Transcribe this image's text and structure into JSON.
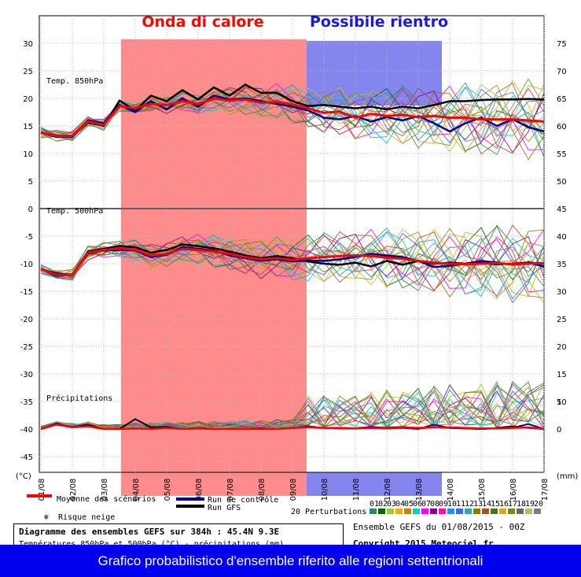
{
  "chart_data": {
    "type": "line",
    "title": "Diagramme des ensembles GEFS sur 384h : 45.4N 9.3E",
    "subtitle": "Températures 850hPa et 500hPa (°C) - précipitations (mm)",
    "x_ticks": [
      "01/08",
      "02/08",
      "03/08",
      "04/08",
      "05/08",
      "06/08",
      "07/08",
      "08/08",
      "09/08",
      "10/08",
      "11/08",
      "12/08",
      "13/08",
      "14/08",
      "15/08",
      "16/08",
      "17/08"
    ],
    "x_range": [
      0,
      16
    ],
    "y_left": {
      "ticks": [
        30,
        25,
        20,
        15,
        10,
        5,
        0,
        -5,
        -10,
        -15,
        -20,
        -25,
        -30,
        -35,
        -40,
        -45
      ],
      "unit": "(°C)",
      "range": [
        -45,
        30
      ]
    },
    "y_right": {
      "t850_ticks": [
        75,
        70,
        65,
        60,
        55,
        50,
        45
      ],
      "t500_ticks": [
        40,
        35,
        30,
        25,
        20,
        15,
        10
      ],
      "precip_ticks": [
        5,
        0
      ],
      "unit": "(mm)"
    },
    "panel_labels": {
      "t850": "Temp. 850hPa",
      "t500": "Temp. 500hPa",
      "precip": "Précipitations"
    },
    "annotations": [
      {
        "label": "Onda di calore",
        "color": "#ff0000",
        "x_range": [
          3,
          8.5
        ]
      },
      {
        "label": "Possibile rientro",
        "color": "#1a1adc",
        "x_range": [
          8.5,
          12.75
        ]
      }
    ],
    "series": [
      {
        "name": "Moyenne des scénarios",
        "color": "#ff0000",
        "x": [
          0,
          0.5,
          1,
          1.5,
          2,
          2.5,
          3,
          3.5,
          4,
          4.5,
          5,
          5.5,
          6,
          6.5,
          7,
          7.5,
          8,
          8.5,
          9,
          9.5,
          10,
          10.5,
          11,
          11.5,
          12,
          12.5,
          13,
          13.5,
          14,
          14.5,
          15,
          15.5,
          16
        ],
        "t850": [
          13.8,
          13.2,
          13.2,
          15.8,
          15.2,
          18.6,
          18.2,
          19.0,
          18.8,
          19.5,
          19.0,
          20.0,
          19.6,
          19.8,
          19.2,
          19.4,
          18.9,
          18.2,
          17.4,
          17.6,
          16.5,
          17.2,
          16.8,
          17.0,
          16.6,
          16.8,
          16.5,
          16.5,
          16.2,
          16.2,
          16.2,
          16.0,
          15.8
        ],
        "t500": [
          -11,
          -12,
          -12,
          -8,
          -7.5,
          -7.2,
          -7.5,
          -8.5,
          -8.2,
          -7.3,
          -7.5,
          -7.8,
          -8.2,
          -8.8,
          -9.2,
          -9.0,
          -9.3,
          -9.0,
          -8.8,
          -8.6,
          -8.5,
          -8.6,
          -8.9,
          -9.1,
          -9.5,
          -9.8,
          -10.0,
          -10.1,
          -10.0,
          -9.9,
          -10.1,
          -10.0,
          -9.9
        ],
        "precip": [
          0,
          0.8,
          0.3,
          0.5,
          0,
          0,
          0.1,
          0,
          0.2,
          0,
          0.1,
          0,
          0,
          0,
          0,
          0,
          0.2,
          0.3,
          0.2,
          0.2,
          0.1,
          0.2,
          0.1,
          0.3,
          0.2,
          0.3,
          0.3,
          0.2,
          0.1,
          0.1,
          0.2,
          0.3,
          0
        ]
      },
      {
        "name": "Run de contrôle",
        "color": "#00008b",
        "x": [
          0,
          0.5,
          1,
          1.5,
          2,
          2.5,
          3,
          3.5,
          4,
          4.5,
          5,
          5.5,
          6,
          6.5,
          7,
          7.5,
          8,
          8.5,
          9,
          9.5,
          10,
          10.5,
          11,
          11.5,
          12,
          12.5,
          13,
          13.5,
          14,
          14.5,
          15,
          15.5,
          16
        ],
        "t850": [
          13.8,
          13.0,
          13.0,
          16.0,
          15.5,
          18.8,
          17.5,
          19.5,
          18.0,
          20.0,
          18.5,
          20.5,
          19.8,
          20.0,
          19.5,
          19.0,
          18.5,
          17.8,
          16.5,
          16.2,
          16.8,
          15.8,
          16.6,
          16.0,
          16.8,
          15.5,
          14.0,
          15.5,
          16.5,
          15.0,
          16.2,
          14.8,
          14.0
        ],
        "t500": [
          -11,
          -12.2,
          -12,
          -8.2,
          -7.6,
          -7.5,
          -7.6,
          -8.8,
          -8.4,
          -7.0,
          -7.3,
          -7.6,
          -8.5,
          -9.0,
          -9.5,
          -9.2,
          -9.6,
          -9.4,
          -9.5,
          -9.2,
          -8.8,
          -8.2,
          -8.5,
          -8.8,
          -9.5,
          -10.6,
          -10.4,
          -10.0,
          -9.5,
          -9.8,
          -10.2,
          -9.8,
          -10.5
        ],
        "precip": [
          0,
          0.9,
          0.4,
          0.6,
          0,
          0,
          0.1,
          0,
          0.2,
          0,
          0.1,
          0,
          0,
          0,
          0,
          0,
          0.2,
          0.5,
          0.2,
          0.1,
          0.1,
          0.4,
          0.1,
          0.2,
          0,
          0.8,
          0.2,
          0.1,
          0,
          0.1,
          0.2,
          0.9,
          0
        ]
      },
      {
        "name": "Run GFS",
        "color": "#000000",
        "x": [
          0,
          0.5,
          1,
          1.5,
          2,
          2.5,
          3,
          3.5,
          4,
          4.5,
          5,
          5.5,
          6,
          6.5,
          7,
          7.5,
          8,
          8.5,
          9,
          9.5,
          10,
          10.5,
          11,
          11.5,
          12,
          12.5,
          13,
          13.5,
          14,
          14.5,
          15,
          15.5,
          16
        ],
        "t850": [
          13.8,
          13.3,
          13.2,
          15.6,
          15.0,
          19.6,
          17.8,
          20.5,
          19.5,
          21.5,
          19.8,
          22.0,
          20.5,
          22.5,
          21.0,
          21.0,
          19.5,
          18.6,
          18.8,
          18.5,
          18.2,
          18.5,
          18.0,
          18.5,
          18.2,
          18.8,
          19.5,
          19.5,
          19.7,
          19.8,
          19.8,
          19.9,
          19.8
        ],
        "t500": [
          -11,
          -11.8,
          -12,
          -7.8,
          -7.3,
          -6.8,
          -7.0,
          -8.0,
          -7.5,
          -6.5,
          -6.8,
          -7.2,
          -7.8,
          -8.5,
          -9.0,
          -8.6,
          -9.0,
          -9.6,
          -10.0,
          -10.2,
          -9.8,
          -10.5,
          -9.5,
          -10.2,
          -9.5,
          -10.0,
          -9.8,
          -10.0,
          -9.9,
          -10.1,
          -10.0,
          -9.8,
          -10.0
        ],
        "precip": [
          0,
          1.0,
          0.3,
          0.8,
          0,
          0,
          1.8,
          0.3,
          0.4,
          0,
          0.2,
          0,
          0,
          0,
          0.1,
          0,
          0.2,
          0.4,
          0.2,
          0.1,
          0.1,
          0.3,
          0.2,
          0.4,
          0.1,
          0.3,
          0.2,
          0.1,
          0,
          0.2,
          0.5,
          0.2,
          0
        ]
      }
    ],
    "perturbations": {
      "label": "20 Perturbations",
      "numbers": [
        "01",
        "02",
        "03",
        "04",
        "05",
        "06",
        "07",
        "08",
        "09",
        "10",
        "11",
        "12",
        "13",
        "14",
        "15",
        "16",
        "17",
        "18",
        "19",
        "20"
      ],
      "colors": [
        "#2e8b57",
        "#006400",
        "#9acd32",
        "#ffa500",
        "#b8860b",
        "#00ced1",
        "#ff00ff",
        "#8b008b",
        "#ff1493",
        "#1e90ff",
        "#4169e1",
        "#20b2aa",
        "#808000",
        "#a0522d",
        "#556b2f",
        "#daa520",
        "#6b8e23",
        "#696969",
        "#bdb76b",
        "#708090"
      ]
    },
    "legend": [
      {
        "label": "Moyenne des scénarios",
        "color": "#ff0000"
      },
      {
        "label": "Run de contrôle",
        "color": "#00008b"
      },
      {
        "label": "Run GFS",
        "color": "#000000"
      }
    ],
    "risque_neige": "Risque neige",
    "ensemble_info": "Ensemble GEFS du 01/08/2015 - 00Z",
    "copyright": "Copyright 2015 Meteociel.fr",
    "banner": "Grafico probabilistico d'ensemble riferito alle regioni settentrionali"
  }
}
